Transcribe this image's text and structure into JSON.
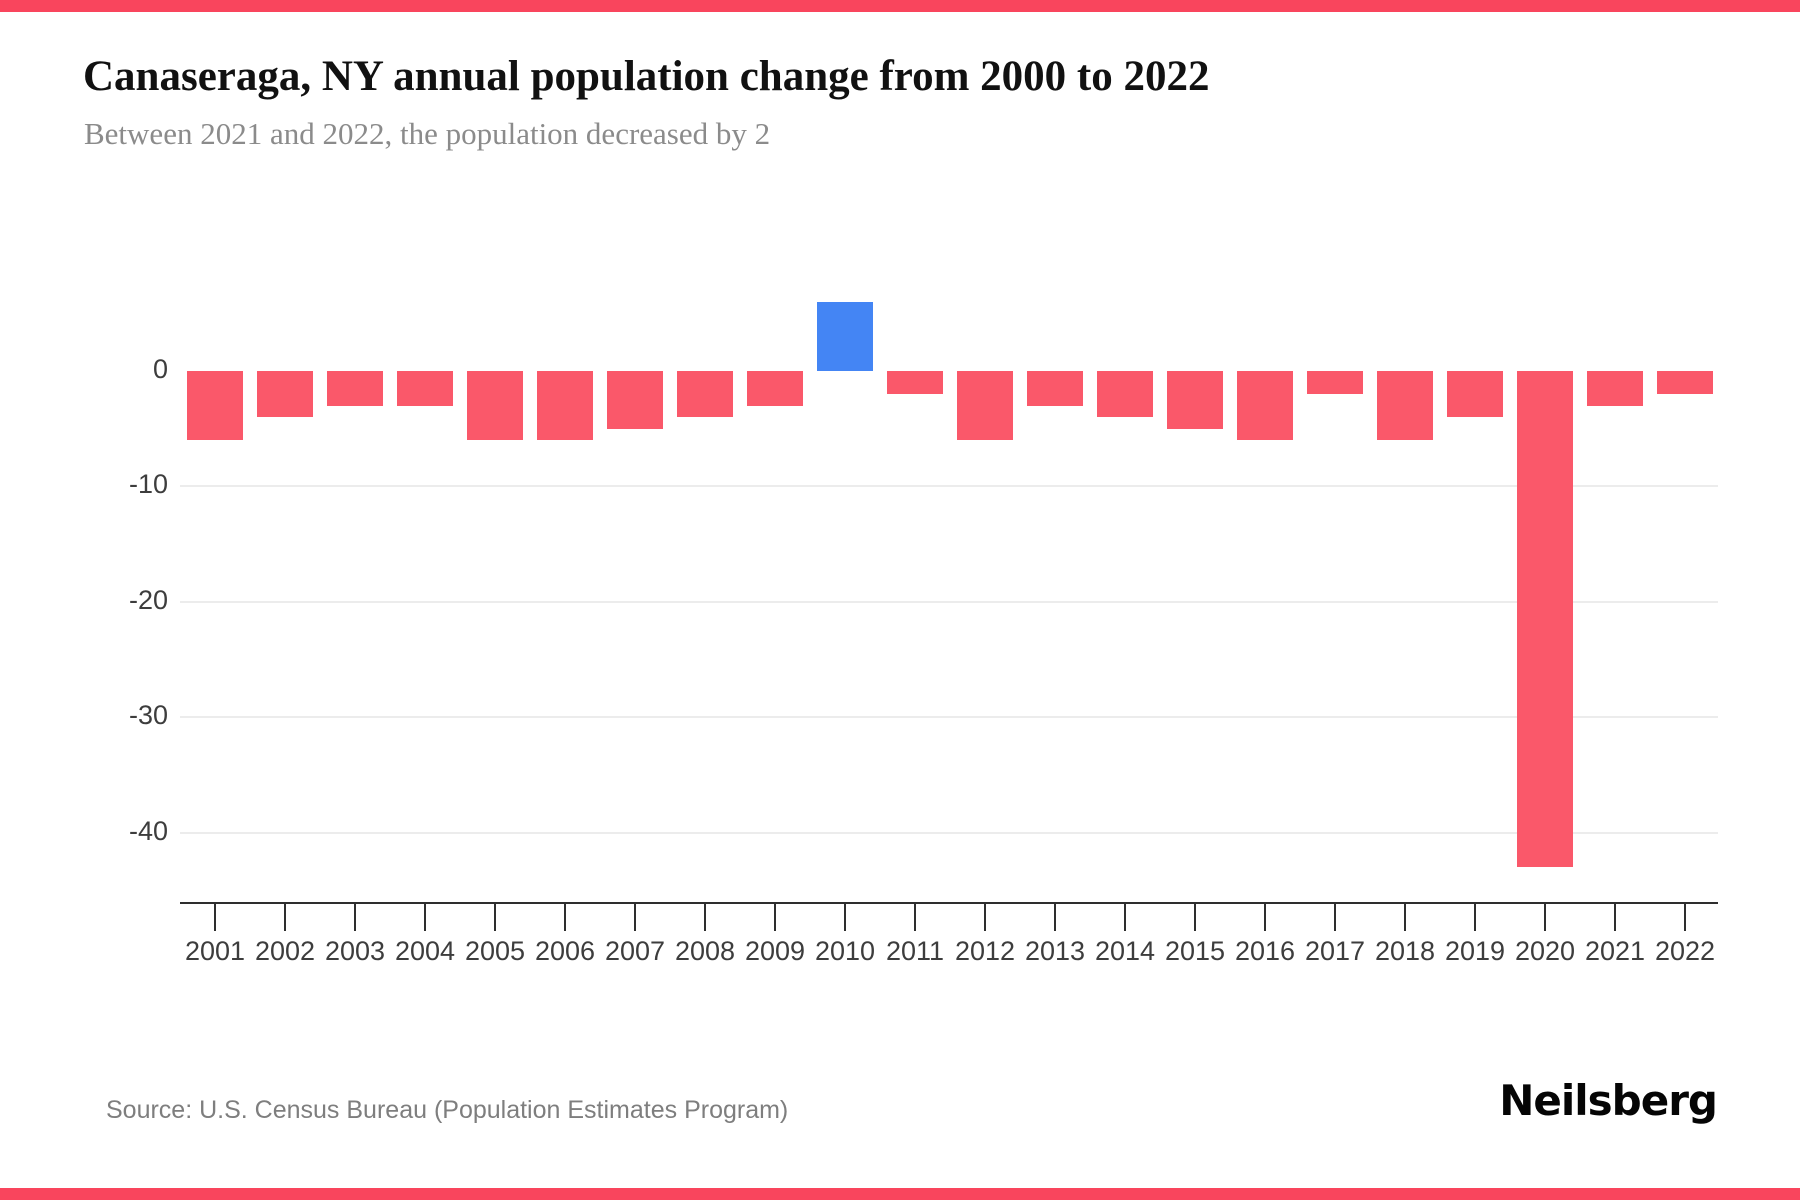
{
  "page": {
    "source": "Source: U.S. Census Bureau (Population Estimates Program)",
    "logo": "Neilsberg"
  },
  "colors": {
    "negative_bar": "#FA586A",
    "positive_bar": "#4485F4",
    "accent_strip": "#F9455D",
    "grid": "#ECECEC",
    "axis": "#2E2E2E",
    "tick_label": "#3D3D3D"
  },
  "chart_data": {
    "type": "bar",
    "title": "Canaseraga, NY annual population change from 2000 to 2022",
    "subtitle": "Between 2021 and 2022, the population decreased by 2",
    "xlabel": "",
    "ylabel": "",
    "categories": [
      "2001",
      "2002",
      "2003",
      "2004",
      "2005",
      "2006",
      "2007",
      "2008",
      "2009",
      "2010",
      "2011",
      "2012",
      "2013",
      "2014",
      "2015",
      "2016",
      "2017",
      "2018",
      "2019",
      "2020",
      "2021",
      "2022"
    ],
    "values": [
      -6,
      -4,
      -3,
      -3,
      -6,
      -6,
      -5,
      -4,
      -3,
      6,
      -2,
      -6,
      -3,
      -4,
      -5,
      -6,
      -2,
      -6,
      -4,
      -43,
      -3,
      -2
    ],
    "ylim": [
      -46,
      8
    ],
    "y_ticks": [
      0,
      -10,
      -20,
      -30,
      -40
    ],
    "y_tick_labels": [
      "0",
      "-10",
      "-20",
      "-30",
      "-40"
    ],
    "grid": "horizontal",
    "legend": "none",
    "bar_color_rule": "positive values blue, negative values pink-red"
  }
}
